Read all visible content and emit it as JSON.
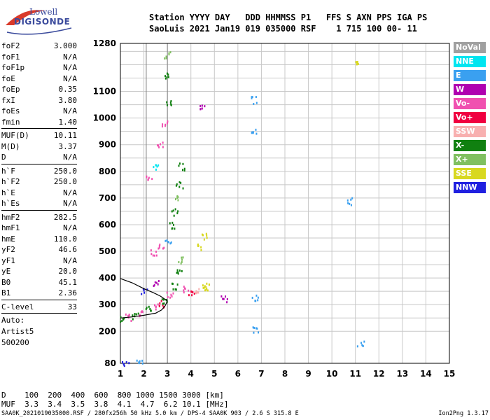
{
  "brand": {
    "line1": "Lowell",
    "line2": "DIGISONDE"
  },
  "header": {
    "line1": "Station YYYY DAY   DDD HHMMSS P1   FFS S AXN PPS IGA PS",
    "line2": "SaoLuis 2021 Jan19 019 035000 RSF    1 715 100 00- 11"
  },
  "params": [
    {
      "key": "foF2",
      "value": "3.000"
    },
    {
      "key": "foF1",
      "value": "N/A"
    },
    {
      "key": "foF1p",
      "value": "N/A"
    },
    {
      "key": "foE",
      "value": "N/A"
    },
    {
      "key": "foEp",
      "value": "0.35"
    },
    {
      "key": "fxI",
      "value": "3.80"
    },
    {
      "key": "foEs",
      "value": "N/A"
    },
    {
      "key": "fmin",
      "value": "1.40"
    },
    {
      "key": "MUF(D)",
      "value": "10.11"
    },
    {
      "key": "M(D)",
      "value": "3.37"
    },
    {
      "key": "D",
      "value": "N/A"
    },
    {
      "key": "h`F",
      "value": "250.0"
    },
    {
      "key": "h`F2",
      "value": "250.0"
    },
    {
      "key": "h`E",
      "value": "N/A"
    },
    {
      "key": "h`Es",
      "value": "N/A"
    },
    {
      "key": "hmF2",
      "value": "282.5"
    },
    {
      "key": "hmF1",
      "value": "N/A"
    },
    {
      "key": "hmE",
      "value": "110.0"
    },
    {
      "key": "yF2",
      "value": "46.6"
    },
    {
      "key": "yF1",
      "value": "N/A"
    },
    {
      "key": "yE",
      "value": "20.0"
    },
    {
      "key": "B0",
      "value": "45.1"
    },
    {
      "key": "B1",
      "value": "2.36"
    },
    {
      "key": "C-level",
      "value": "33"
    }
  ],
  "autoscaling": {
    "label": "Auto:",
    "artist": "Artist5",
    "code": "500200"
  },
  "legend": [
    {
      "label": "NoVal",
      "color": "#a0a0a0"
    },
    {
      "label": "NNE",
      "color": "#00e5f0"
    },
    {
      "label": "E",
      "color": "#3aa0f0"
    },
    {
      "label": "W",
      "color": "#b000b0"
    },
    {
      "label": "Vo-",
      "color": "#f050b0"
    },
    {
      "label": "Vo+",
      "color": "#f00040"
    },
    {
      "label": "SSW",
      "color": "#f8b0b0"
    },
    {
      "label": "X-",
      "color": "#108010"
    },
    {
      "label": "X+",
      "color": "#80c060"
    },
    {
      "label": "SSE",
      "color": "#d8d820"
    },
    {
      "label": "NNW",
      "color": "#2020e0"
    }
  ],
  "muf_table": {
    "row1": "D    100  200  400  600  800 1000 1500 3000 [km]",
    "row2": "MUF  3.3  3.4  3.5  3.8  4.1  4.7  6.2 10.1 [MHz]"
  },
  "footer": {
    "left": "SAA0K_2021019035000.RSF / 280fx256h 50 kHz 5.0 km / DPS-4 SAA0K 903 / 2.6 S 315.8 E",
    "right": "Ion2Png 1.3.17"
  },
  "chart_data": {
    "type": "scatter",
    "title": "",
    "xlabel": "",
    "ylabel": "",
    "x_ticks": [
      1,
      2,
      3,
      4,
      5,
      6,
      7,
      8,
      9,
      10,
      11,
      12,
      13,
      14,
      15
    ],
    "y_ticks": [
      80,
      200,
      300,
      400,
      500,
      600,
      700,
      800,
      900,
      1000,
      1100,
      1280
    ],
    "xlim": [
      1,
      15
    ],
    "ylim": [
      80,
      1280
    ],
    "y_gridlines": [
      200,
      250,
      300,
      350,
      400,
      450,
      500,
      550,
      600,
      650,
      700,
      750,
      800,
      850,
      900,
      950,
      1000,
      1050,
      1100,
      1150,
      1200,
      1250
    ],
    "grid": true,
    "vertical_markers": [
      2.1,
      3.0
    ],
    "profile_curve": [
      [
        1.0,
        250
      ],
      [
        1.5,
        254
      ],
      [
        2.0,
        260
      ],
      [
        2.5,
        268
      ],
      [
        2.75,
        280
      ],
      [
        2.9,
        295
      ],
      [
        2.98,
        310
      ],
      [
        3.0,
        316
      ]
    ],
    "profile_upper": [
      [
        1.0,
        398
      ],
      [
        1.5,
        382
      ],
      [
        2.0,
        360
      ],
      [
        2.4,
        345
      ],
      [
        2.7,
        332
      ],
      [
        2.9,
        320
      ],
      [
        3.0,
        316
      ]
    ],
    "trace_points": [
      {
        "x": 1.1,
        "y": 250,
        "color": "#108010"
      },
      {
        "x": 1.3,
        "y": 255,
        "color": "#f050b0"
      },
      {
        "x": 1.6,
        "y": 262,
        "color": "#108010"
      },
      {
        "x": 1.9,
        "y": 272,
        "color": "#f050b0"
      },
      {
        "x": 2.2,
        "y": 285,
        "color": "#108010"
      },
      {
        "x": 2.5,
        "y": 295,
        "color": "#f050b0"
      },
      {
        "x": 2.7,
        "y": 305,
        "color": "#f00040"
      },
      {
        "x": 2.9,
        "y": 320,
        "color": "#108010"
      },
      {
        "x": 3.1,
        "y": 340,
        "color": "#f050b0"
      },
      {
        "x": 3.3,
        "y": 370,
        "color": "#108010"
      },
      {
        "x": 3.5,
        "y": 420,
        "color": "#108010"
      },
      {
        "x": 3.6,
        "y": 470,
        "color": "#80c060"
      },
      {
        "x": 3.8,
        "y": 360,
        "color": "#f050b0"
      },
      {
        "x": 4.0,
        "y": 350,
        "color": "#f00040"
      },
      {
        "x": 4.2,
        "y": 360,
        "color": "#f8b0b0"
      },
      {
        "x": 4.5,
        "y": 365,
        "color": "#d8d820"
      },
      {
        "x": 4.7,
        "y": 370,
        "color": "#d8d820"
      },
      {
        "x": 1.2,
        "y": 85,
        "color": "#2020e0"
      },
      {
        "x": 1.8,
        "y": 85,
        "color": "#3aa0f0"
      },
      {
        "x": 2.0,
        "y": 350,
        "color": "#2020e0"
      },
      {
        "x": 2.5,
        "y": 380,
        "color": "#b000b0"
      },
      {
        "x": 2.4,
        "y": 500,
        "color": "#f050b0"
      },
      {
        "x": 2.7,
        "y": 520,
        "color": "#f050b0"
      },
      {
        "x": 3.0,
        "y": 540,
        "color": "#3aa0f0"
      },
      {
        "x": 3.2,
        "y": 600,
        "color": "#108010"
      },
      {
        "x": 3.3,
        "y": 650,
        "color": "#108010"
      },
      {
        "x": 3.4,
        "y": 700,
        "color": "#80c060"
      },
      {
        "x": 3.5,
        "y": 750,
        "color": "#108010"
      },
      {
        "x": 3.6,
        "y": 820,
        "color": "#108010"
      },
      {
        "x": 4.6,
        "y": 560,
        "color": "#d8d820"
      },
      {
        "x": 4.4,
        "y": 520,
        "color": "#d8d820"
      },
      {
        "x": 2.2,
        "y": 780,
        "color": "#f050b0"
      },
      {
        "x": 2.5,
        "y": 820,
        "color": "#00e5f0"
      },
      {
        "x": 2.7,
        "y": 900,
        "color": "#f050b0"
      },
      {
        "x": 2.9,
        "y": 980,
        "color": "#f050b0"
      },
      {
        "x": 3.0,
        "y": 1060,
        "color": "#108010"
      },
      {
        "x": 3.0,
        "y": 1160,
        "color": "#108010"
      },
      {
        "x": 3.0,
        "y": 1240,
        "color": "#80c060"
      },
      {
        "x": 6.7,
        "y": 1070,
        "color": "#3aa0f0"
      },
      {
        "x": 6.7,
        "y": 950,
        "color": "#3aa0f0"
      },
      {
        "x": 6.7,
        "y": 325,
        "color": "#3aa0f0"
      },
      {
        "x": 6.7,
        "y": 210,
        "color": "#3aa0f0"
      },
      {
        "x": 10.7,
        "y": 690,
        "color": "#3aa0f0"
      },
      {
        "x": 11.2,
        "y": 155,
        "color": "#3aa0f0"
      },
      {
        "x": 11.1,
        "y": 1205,
        "color": "#d8d820"
      },
      {
        "x": 4.5,
        "y": 1040,
        "color": "#b000b0"
      },
      {
        "x": 5.4,
        "y": 325,
        "color": "#b000b0"
      }
    ]
  }
}
